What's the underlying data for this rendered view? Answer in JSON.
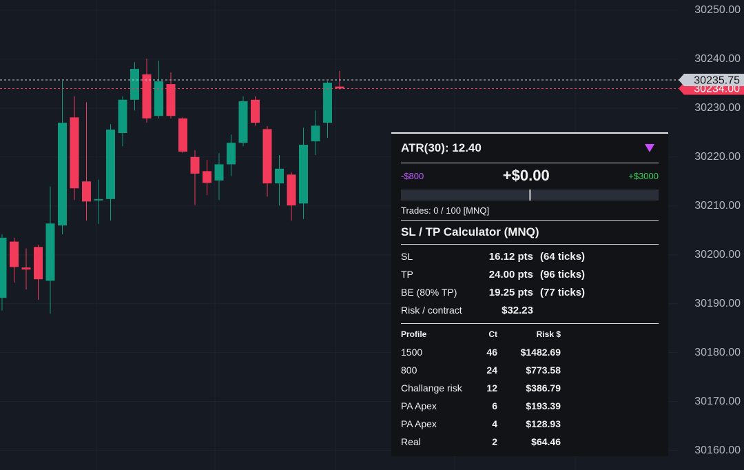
{
  "chart_data": {
    "type": "candlestick",
    "categories": [
      null,
      null,
      null,
      null,
      null,
      null,
      null,
      null,
      null,
      null,
      null,
      null,
      null,
      null,
      null,
      null,
      null,
      null,
      null,
      null,
      null,
      null,
      null,
      null,
      null,
      null,
      null,
      null,
      null
    ],
    "open": [
      30191.2,
      30202.7,
      30197.4,
      30201.6,
      30194.7,
      30206.0,
      30228.1,
      30215.0,
      30211.2,
      30211.4,
      30224.9,
      30231.7,
      30236.9,
      30228.4,
      30234.9,
      30227.9,
      30220.0,
      30217.1,
      30215.2,
      30218.5,
      30222.9,
      30231.7,
      30225.7,
      30214.6,
      30216.4,
      30210.5,
      30223.2,
      30227.0,
      30234.4
    ],
    "high": [
      30204.2,
      30203.5,
      30201.3,
      30202.0,
      30214.0,
      30235.5,
      30232.4,
      30231.2,
      30215.4,
      30226.7,
      30232.4,
      30239.4,
      30240.1,
      30239.7,
      30237.3,
      30228.1,
      30221.4,
      30219.4,
      30220.8,
      30224.6,
      30232.4,
      30232.4,
      30226.3,
      30220.4,
      30216.9,
      30226.0,
      30229.5,
      30235.5,
      30237.6
    ],
    "low": [
      30188.6,
      30194.3,
      30192.9,
      30190.8,
      30188.0,
      30204.2,
      30211.2,
      30207.0,
      30206.3,
      30207.0,
      30222.2,
      30229.5,
      30227.0,
      30227.9,
      30227.9,
      30220.8,
      30210.2,
      30212.2,
      30211.2,
      30216.1,
      30222.2,
      30226.4,
      30211.9,
      30210.1,
      30207.0,
      30207.3,
      30220.4,
      30223.9,
      30233.8
    ],
    "close": [
      30203.5,
      30197.5,
      30197.0,
      30195.0,
      30206.4,
      30227.0,
      30213.6,
      30210.9,
      30211.4,
      30225.6,
      30231.7,
      30238.0,
      30227.9,
      30235.5,
      30228.4,
      30221.1,
      30216.6,
      30214.7,
      30218.5,
      30222.9,
      30231.4,
      30227.0,
      30214.6,
      30217.6,
      30210.1,
      30222.5,
      30226.4,
      30235.2,
      30234.0
    ],
    "up_color": "#0e9a7e",
    "down_color": "#f23a5a",
    "ylim": [
      30252.1,
      30156.0
    ],
    "yticks": [
      {
        "value": 30250,
        "label": "30250.00"
      },
      {
        "value": 30240,
        "label": "30240.00"
      },
      {
        "value": 30230,
        "label": "30230.00"
      },
      {
        "value": 30220,
        "label": "30220.00"
      },
      {
        "value": 30210,
        "label": "30210.00"
      },
      {
        "value": 30200,
        "label": "30200.00"
      },
      {
        "value": 30190,
        "label": "30190.00"
      },
      {
        "value": 30180,
        "label": "30180.00"
      },
      {
        "value": 30170,
        "label": "30170.00"
      },
      {
        "value": 30160,
        "label": "30160.00"
      }
    ],
    "grid": true,
    "price_lines": [
      {
        "value": 30234.0,
        "label": "30234.00",
        "color": "#f23a5a"
      },
      {
        "value": 30235.75,
        "label": "30235.75",
        "color": "#c8ccd4"
      }
    ]
  },
  "panel": {
    "atr": "ATR(30): 12.40",
    "pnl_min": "-$800",
    "pnl": "+$0.00",
    "pnl_max": "+$3000",
    "trades": "Trades: 0 / 100 [MNQ]",
    "calc_title": "SL / TP Calculator (MNQ)",
    "calc_rows": [
      [
        "SL",
        "16.12 pts",
        "(64 ticks)"
      ],
      [
        "TP",
        "24.00 pts",
        "(96 ticks)"
      ],
      [
        "BE (80% TP)",
        "19.25 pts",
        "(77 ticks)"
      ],
      [
        "Risk / contract",
        "$32.23"
      ]
    ],
    "table_header": [
      "Profile",
      "Ct",
      "Risk $"
    ],
    "table_rows": [
      [
        "1500",
        "46",
        "$1482.69"
      ],
      [
        "800",
        "24",
        "$773.58"
      ],
      [
        "Challange risk",
        "12",
        "$386.79"
      ],
      [
        "PA Apex",
        "6",
        "$193.39"
      ],
      [
        "PA Apex",
        "4",
        "$128.93"
      ],
      [
        "Real",
        "2",
        "$64.46"
      ]
    ]
  }
}
